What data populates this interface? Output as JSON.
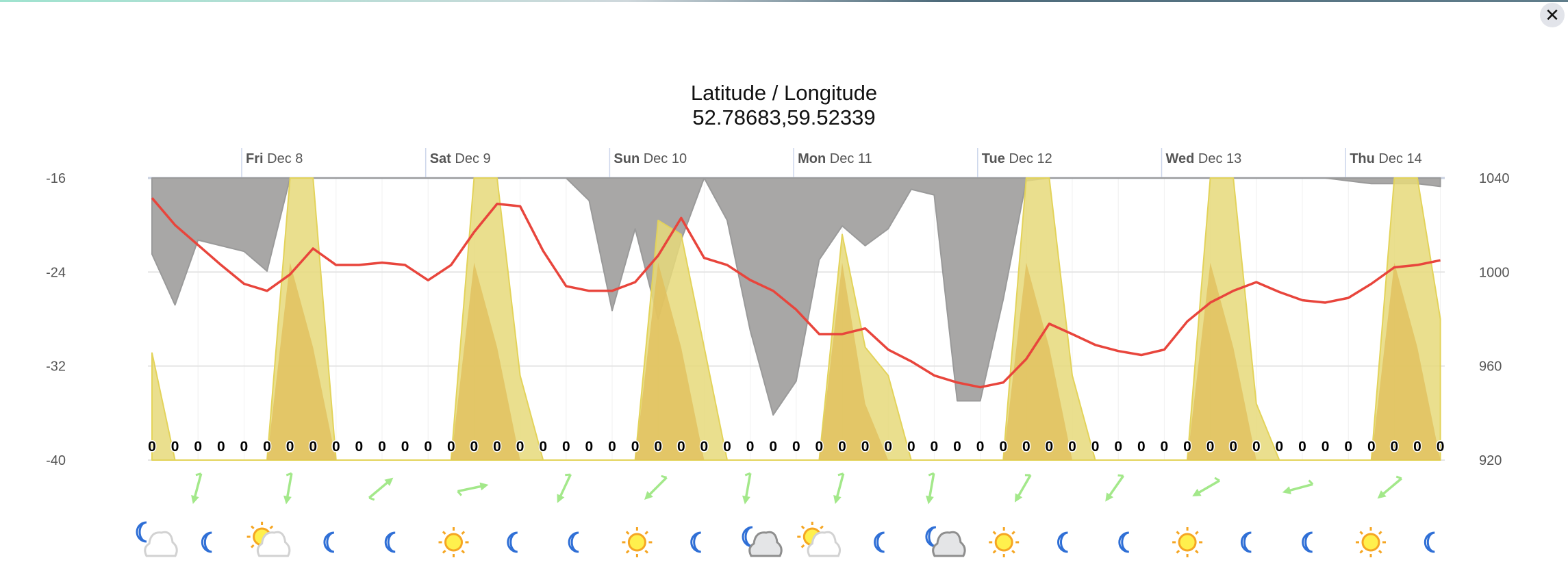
{
  "header": {
    "title": "Latitude / Longitude",
    "coords": "52.78683,59.52339",
    "close_icon": "close-icon"
  },
  "chart_data": {
    "type": "area+line",
    "title": "Latitude / Longitude",
    "subtitle": "52.78683,59.52339",
    "x_start": "Dec 7 12:00",
    "x_step_hours": 3,
    "days": [
      {
        "dow": "Fri",
        "date": "Dec 8"
      },
      {
        "dow": "Sat",
        "date": "Dec 9"
      },
      {
        "dow": "Sun",
        "date": "Dec 10"
      },
      {
        "dow": "Mon",
        "date": "Dec 11"
      },
      {
        "dow": "Tue",
        "date": "Dec 12"
      },
      {
        "dow": "Wed",
        "date": "Dec 13"
      },
      {
        "dow": "Thu",
        "date": "Dec 14"
      }
    ],
    "left_axis": {
      "ticks": [
        "-16",
        "-24",
        "-32",
        "-40"
      ],
      "ylim": [
        -40,
        -16
      ]
    },
    "right_axis": {
      "ticks": [
        "1040",
        "1000",
        "960",
        "920"
      ],
      "ylim": [
        920,
        1040
      ]
    },
    "grid": true,
    "series": [
      {
        "id": "pressure",
        "type": "line",
        "axis": "right",
        "color": "#e8453c",
        "values": [
          1031.5,
          1020,
          1011.5,
          1003,
          995,
          992,
          999,
          1010,
          1003,
          1003,
          1004,
          1003,
          996.5,
          1003,
          1017,
          1029,
          1028,
          1009,
          994,
          992,
          992,
          995.7,
          1007,
          1023,
          1006,
          1003,
          996.6,
          992,
          984,
          973.6,
          973.6,
          976,
          967,
          962,
          956,
          953,
          951,
          953,
          963,
          978,
          973.6,
          969,
          966.4,
          964.7,
          967,
          979,
          987,
          992,
          995.7,
          991.5,
          988,
          987,
          989,
          995,
          1002,
          1003,
          1005
        ]
      },
      {
        "id": "cloud",
        "type": "area-from-top",
        "unit": "%",
        "color": "#a8a7a6",
        "values": [
          27,
          45,
          22,
          24,
          26,
          33,
          0,
          0,
          0,
          0,
          0,
          0,
          0,
          0,
          0,
          0,
          0,
          0,
          0,
          8,
          47,
          18,
          50,
          22,
          0,
          15,
          54,
          84,
          72,
          29,
          17,
          24,
          18,
          4,
          6,
          79,
          79,
          43,
          1,
          0,
          0,
          0,
          0,
          0,
          0,
          0,
          0,
          0,
          0,
          0,
          0,
          0,
          1,
          2,
          2,
          2,
          3
        ]
      },
      {
        "id": "sun",
        "type": "area",
        "unit": "%",
        "color": "#e6d97a",
        "values": [
          38,
          0,
          0,
          0,
          0,
          0,
          100,
          100,
          0,
          0,
          0,
          0,
          0,
          0,
          100,
          100,
          30,
          0,
          0,
          0,
          0,
          0,
          85,
          80,
          40,
          0,
          0,
          0,
          0,
          0,
          80,
          40,
          30,
          0,
          0,
          0,
          0,
          0,
          100,
          100,
          30,
          0,
          0,
          0,
          0,
          0,
          100,
          100,
          20,
          0,
          0,
          0,
          0,
          0,
          100,
          100,
          50
        ]
      },
      {
        "id": "sun-inner",
        "type": "area",
        "unit": "%",
        "color": "#e0c560",
        "values": [
          0,
          0,
          0,
          0,
          0,
          0,
          70,
          40,
          0,
          0,
          0,
          0,
          0,
          0,
          70,
          40,
          0,
          0,
          0,
          0,
          0,
          0,
          70,
          40,
          0,
          0,
          0,
          0,
          0,
          0,
          70,
          20,
          0,
          0,
          0,
          0,
          0,
          0,
          70,
          40,
          0,
          0,
          0,
          0,
          0,
          0,
          70,
          40,
          0,
          0,
          0,
          0,
          0,
          0,
          70,
          40,
          0
        ]
      },
      {
        "id": "precip",
        "type": "label",
        "values": [
          "0",
          "0",
          "0",
          "0",
          "0",
          "0",
          "0",
          "0",
          "0",
          "0",
          "0",
          "0",
          "0",
          "0",
          "0",
          "0",
          "0",
          "0",
          "0",
          "0",
          "0",
          "0",
          "0",
          "0",
          "0",
          "0",
          "0",
          "0",
          "0",
          "0",
          "0",
          "0",
          "0",
          "0",
          "0",
          "0",
          "0",
          "0",
          "0",
          "0",
          "0",
          "0",
          "0",
          "0",
          "0",
          "0",
          "0",
          "0",
          "0",
          "0",
          "0",
          "0",
          "0",
          "0",
          "0",
          "0",
          "0"
        ]
      }
    ],
    "wind_every_hours": 12,
    "wind_directions_deg": [
      195,
      190,
      50,
      78,
      205,
      225,
      190,
      195,
      190,
      210,
      215,
      240,
      255,
      230
    ],
    "wind_color": "#a3e88a",
    "weather_icons": [
      "moon-cloud",
      "moon",
      "sun-cloud",
      "moon",
      "moon",
      "sun",
      "moon",
      "moon",
      "sun",
      "moon",
      "moon-cloud-dark",
      "sun-cloud",
      "moon",
      "moon-cloud-dark",
      "sun",
      "moon",
      "moon",
      "sun",
      "moon",
      "moon",
      "sun",
      "moon"
    ]
  }
}
